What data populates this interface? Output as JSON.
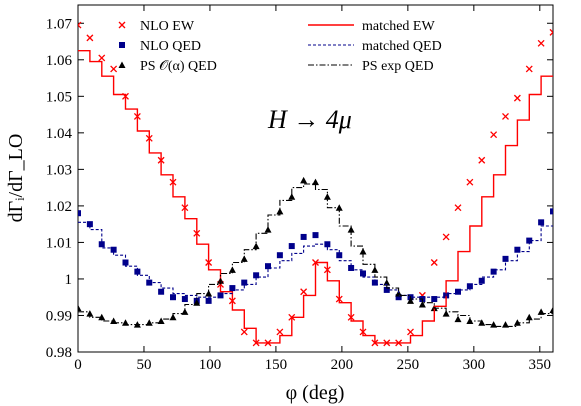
{
  "chart_data": {
    "type": "line",
    "annotation": "H → 4μ",
    "xlabel": "φ (deg)",
    "ylabel": "dΓᵢ/dΓ_LO",
    "xlim": [
      0,
      360
    ],
    "ylim": [
      0.98,
      1.075
    ],
    "xticks": [
      "0",
      "50",
      "100",
      "150",
      "200",
      "250",
      "300",
      "350"
    ],
    "yticks": [
      "0.98",
      "0.99",
      "1",
      "1.01",
      "1.02",
      "1.03",
      "1.04",
      "1.05",
      "1.06",
      "1.07"
    ],
    "grid": false,
    "legend_position": "top",
    "colors": {
      "red": "#ff0000",
      "blue": "#00008b",
      "black": "#000000"
    },
    "series": [
      {
        "name": "NLO EW",
        "style": "marker-x",
        "color": "#ff0000",
        "x": [
          0,
          9,
          18,
          27,
          36,
          45,
          54,
          63,
          72,
          81,
          90,
          99,
          108,
          117,
          126,
          135,
          144,
          153,
          162,
          171,
          180,
          189,
          198,
          207,
          216,
          225,
          234,
          243,
          252,
          261,
          270,
          279,
          288,
          297,
          306,
          315,
          324,
          333,
          342,
          351,
          360
        ],
        "y": [
          1.0695,
          1.066,
          1.0605,
          1.0575,
          1.05,
          1.0445,
          1.0385,
          1.0325,
          1.0265,
          1.0195,
          1.0125,
          1.0045,
          0.9985,
          0.994,
          0.9855,
          0.9825,
          0.9825,
          0.9855,
          0.9895,
          0.9965,
          1.0045,
          1.0025,
          0.9945,
          0.9895,
          0.9855,
          0.9825,
          0.9825,
          0.9825,
          0.9855,
          0.9955,
          1.0045,
          1.0115,
          1.0195,
          1.0265,
          1.0325,
          1.0395,
          1.0445,
          1.0495,
          1.0575,
          1.0645,
          1.0675
        ]
      },
      {
        "name": "NLO QED",
        "style": "marker-square",
        "color": "#00008b",
        "x": [
          0,
          9,
          18,
          27,
          36,
          45,
          54,
          63,
          72,
          81,
          90,
          99,
          108,
          117,
          126,
          135,
          144,
          153,
          162,
          171,
          180,
          189,
          198,
          207,
          216,
          225,
          234,
          243,
          252,
          261,
          270,
          279,
          288,
          297,
          306,
          315,
          324,
          333,
          342,
          351,
          360
        ],
        "y": [
          1.018,
          1.015,
          1.0095,
          1.008,
          1.0045,
          1.002,
          0.999,
          0.9965,
          0.995,
          0.9945,
          0.994,
          0.994,
          0.9955,
          0.9975,
          0.999,
          1.001,
          1.0035,
          1.0065,
          1.009,
          1.0115,
          1.012,
          1.0095,
          1.0065,
          1.003,
          1.0015,
          0.999,
          0.997,
          0.995,
          0.995,
          0.9945,
          0.9945,
          0.9955,
          0.9965,
          0.998,
          0.9995,
          1.002,
          1.0055,
          1.008,
          1.0105,
          1.0155,
          1.0185
        ]
      },
      {
        "name": "PS 𝒪(α) QED",
        "style": "marker-triangle",
        "color": "#000000",
        "x": [
          0,
          9,
          18,
          27,
          36,
          45,
          54,
          63,
          72,
          81,
          90,
          99,
          108,
          117,
          126,
          135,
          144,
          153,
          162,
          171,
          180,
          189,
          198,
          207,
          216,
          225,
          234,
          243,
          252,
          261,
          270,
          279,
          288,
          297,
          306,
          315,
          324,
          333,
          342,
          351,
          360
        ],
        "y": [
          0.992,
          0.9905,
          0.9895,
          0.9885,
          0.988,
          0.9875,
          0.988,
          0.9885,
          0.9895,
          0.991,
          0.9935,
          0.996,
          0.9995,
          1.0025,
          1.0055,
          1.009,
          1.0135,
          1.0185,
          1.0225,
          1.027,
          1.0265,
          1.0225,
          1.0195,
          1.0135,
          1.0075,
          1.0025,
          0.999,
          0.996,
          0.994,
          0.993,
          0.992,
          0.9905,
          0.989,
          0.9885,
          0.988,
          0.9875,
          0.9875,
          0.988,
          0.9895,
          0.991,
          0.9915
        ]
      },
      {
        "name": "matched EW",
        "style": "step-solid",
        "color": "#ff0000",
        "x": [
          0,
          9,
          18,
          27,
          36,
          45,
          54,
          63,
          72,
          81,
          90,
          99,
          108,
          117,
          126,
          135,
          144,
          153,
          162,
          171,
          180,
          189,
          198,
          207,
          216,
          225,
          234,
          243,
          252,
          261,
          270,
          279,
          288,
          297,
          306,
          315,
          324,
          333,
          342,
          351
        ],
        "y": [
          1.0625,
          1.0595,
          1.0555,
          1.0505,
          1.0465,
          1.0405,
          1.0345,
          1.0285,
          1.0225,
          1.0165,
          1.0095,
          1.0025,
          0.9965,
          0.9915,
          0.9865,
          0.9825,
          0.9825,
          0.9845,
          0.9895,
          0.9955,
          1.0045,
          0.9995,
          0.9935,
          0.9885,
          0.9845,
          0.9825,
          0.9825,
          0.9825,
          0.9845,
          0.9885,
          0.9925,
          0.9995,
          1.0075,
          1.0145,
          1.0225,
          1.0285,
          1.0365,
          1.0435,
          1.0505,
          1.0555
        ]
      },
      {
        "name": "matched QED",
        "style": "step-dashed",
        "color": "#00008b",
        "x": [
          0,
          9,
          18,
          27,
          36,
          45,
          54,
          63,
          72,
          81,
          90,
          99,
          108,
          117,
          126,
          135,
          144,
          153,
          162,
          171,
          180,
          189,
          198,
          207,
          216,
          225,
          234,
          243,
          252,
          261,
          270,
          279,
          288,
          297,
          306,
          315,
          324,
          333,
          342,
          351
        ],
        "y": [
          1.0155,
          1.0135,
          1.0085,
          1.0065,
          1.0035,
          1.001,
          0.999,
          0.9975,
          0.996,
          0.9955,
          0.995,
          0.995,
          0.996,
          0.997,
          0.9985,
          1.0005,
          1.003,
          1.005,
          1.007,
          1.009,
          1.0095,
          1.008,
          1.005,
          1.0025,
          1.0005,
          0.9985,
          0.997,
          0.9955,
          0.995,
          0.995,
          0.995,
          0.996,
          0.997,
          0.9985,
          1.0005,
          1.0025,
          1.005,
          1.0075,
          1.0105,
          1.0145
        ]
      },
      {
        "name": "PS exp QED",
        "style": "step-dashdot",
        "color": "#000000",
        "x": [
          0,
          9,
          18,
          27,
          36,
          45,
          54,
          63,
          72,
          81,
          90,
          99,
          108,
          117,
          126,
          135,
          144,
          153,
          162,
          171,
          180,
          189,
          198,
          207,
          216,
          225,
          234,
          243,
          252,
          261,
          270,
          279,
          288,
          297,
          306,
          315,
          324,
          333,
          342,
          351
        ],
        "y": [
          0.991,
          0.9895,
          0.9885,
          0.988,
          0.9875,
          0.9875,
          0.988,
          0.989,
          0.9905,
          0.993,
          0.996,
          0.9985,
          1.0015,
          1.0045,
          1.008,
          1.0125,
          1.0175,
          1.0215,
          1.025,
          1.026,
          1.0245,
          1.0195,
          1.0145,
          1.009,
          1.004,
          1.0005,
          0.9975,
          0.9955,
          0.9945,
          0.9935,
          0.992,
          0.991,
          0.99,
          0.9885,
          0.9875,
          0.987,
          0.987,
          0.988,
          0.989,
          0.9905
        ]
      }
    ]
  }
}
